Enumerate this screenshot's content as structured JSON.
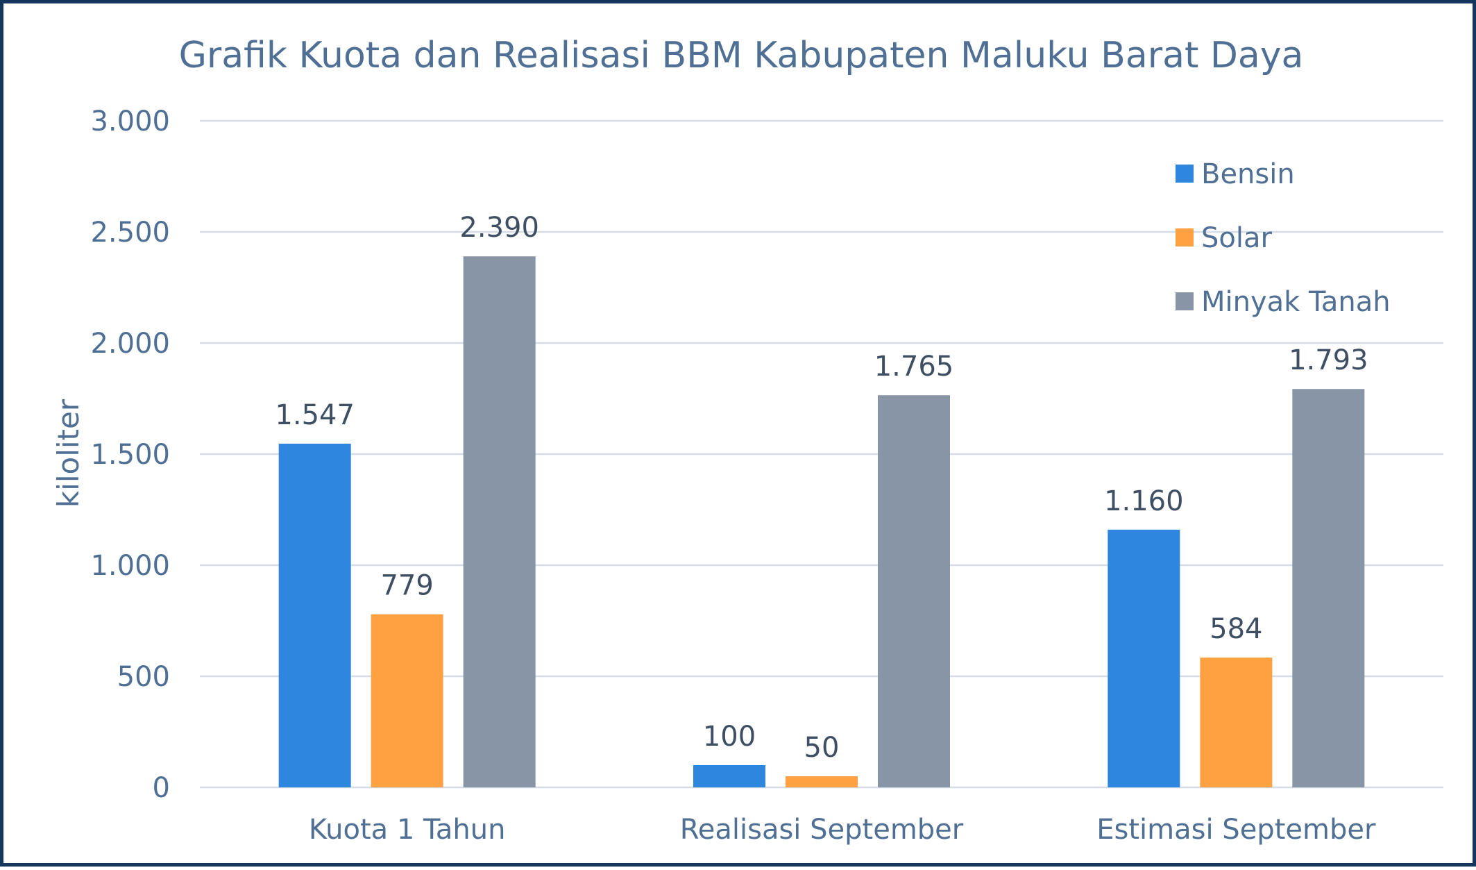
{
  "chart_data": {
    "type": "bar",
    "title": "Grafik Kuota dan Realisasi BBM Kabupaten Maluku Barat Daya",
    "xlabel": "",
    "ylabel": "kiloliter",
    "ylim": [
      0,
      3000
    ],
    "yticks": [
      0,
      500,
      1000,
      1500,
      2000,
      2500,
      3000
    ],
    "ytick_labels": [
      "0",
      "500",
      "1.000",
      "1.500",
      "2.000",
      "2.500",
      "3.000"
    ],
    "categories": [
      "Kuota 1 Tahun",
      "Realisasi September",
      "Estimasi September"
    ],
    "grid": true,
    "legend_position": "top-right",
    "series": [
      {
        "name": "Bensin",
        "color": "#2e86de",
        "values": [
          1547,
          100,
          1160
        ],
        "labels": [
          "1.547",
          "100",
          "1.160"
        ]
      },
      {
        "name": "Solar",
        "color": "#ffa041",
        "values": [
          779,
          50,
          584
        ],
        "labels": [
          "779",
          "50",
          "584"
        ]
      },
      {
        "name": "Minyak Tanah",
        "color": "#8795a6",
        "values": [
          2390,
          1765,
          1793
        ],
        "labels": [
          "2.390",
          "1.765",
          "1.793"
        ]
      }
    ]
  }
}
